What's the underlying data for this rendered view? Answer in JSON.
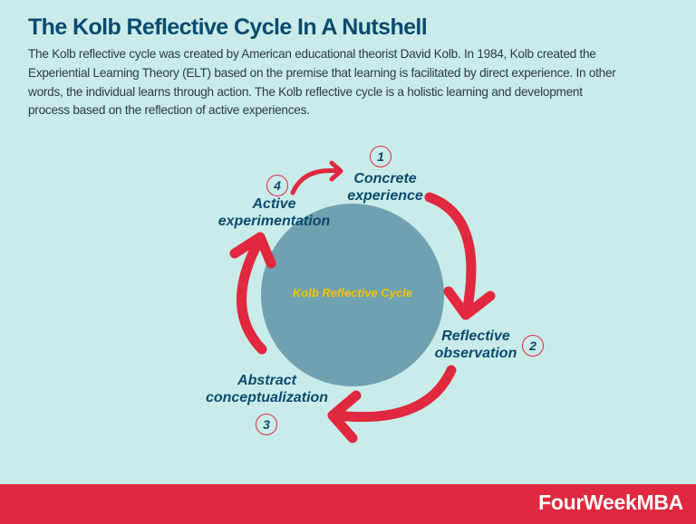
{
  "header": {
    "title": "The Kolb Reflective Cycle In A Nutshell",
    "description_lines": [
      "The Kolb reflective cycle was created by American educational theorist David Kolb. In 1984, Kolb created the",
      "Experiential Learning Theory (ELT) based on the premise that learning is facilitated by direct experience. In other",
      "words, the individual learns through action. The Kolb reflective cycle is a holistic learning and development",
      "process based on the reflection of active experiences."
    ]
  },
  "diagram": {
    "center_label": "Kolb Reflective Cycle",
    "stages": [
      {
        "number": "1",
        "line1": "Concrete",
        "line2": "experience"
      },
      {
        "number": "2",
        "line1": "Reflective",
        "line2": "observation"
      },
      {
        "number": "3",
        "line1": "Abstract",
        "line2": "conceptualization"
      },
      {
        "number": "4",
        "line1": "Active",
        "line2": "experimentation"
      }
    ],
    "colors": {
      "background": "#c9ecea",
      "circle": "#6fa1b1",
      "arrow": "#e0283f",
      "text": "#0b4a6e",
      "center_text": "#f2c400"
    }
  },
  "footer": {
    "brand": "FourWeekMBA"
  }
}
